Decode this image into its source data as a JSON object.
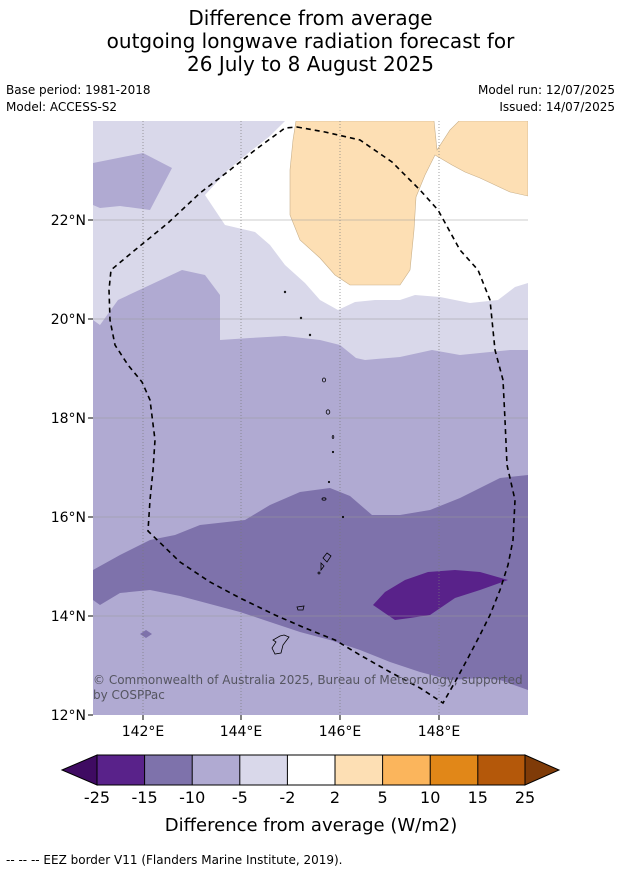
{
  "title": {
    "line1": "Difference from average",
    "line2": "outgoing longwave radiation forecast for",
    "line3": "26 July to 8 August 2025"
  },
  "meta": {
    "base_period": "Base period: 1981-2018",
    "model": "Model: ACCESS-S2",
    "model_run": "Model run: 12/07/2025",
    "issued": "Issued: 14/07/2025"
  },
  "map": {
    "lat_labels": [
      "22°N",
      "20°N",
      "18°N",
      "16°N",
      "14°N",
      "12°N"
    ],
    "lon_labels": [
      "142°E",
      "144°E",
      "146°E",
      "148°E"
    ],
    "copyright_line1": "© Commonwealth of Australia 2025, Bureau of Meteorology, supported",
    "copyright_line2": "by COSPPac"
  },
  "colorbar": {
    "ticks": [
      "-25",
      "-15",
      "-10",
      "-5",
      "-2",
      "2",
      "5",
      "10",
      "15",
      "25"
    ],
    "title": "Difference from average (W/m2)",
    "colors": [
      "#3f0b62",
      "#59228a",
      "#7e72ab",
      "#b0aad2",
      "#d9d8ea",
      "#ffffff",
      "#fddfb4",
      "#fbb55c",
      "#e18718",
      "#b4580a",
      "#7f3b08"
    ]
  },
  "footer": {
    "text": "--  --  -- EEZ border V11 (Flanders Marine Institute, 2019)."
  }
}
